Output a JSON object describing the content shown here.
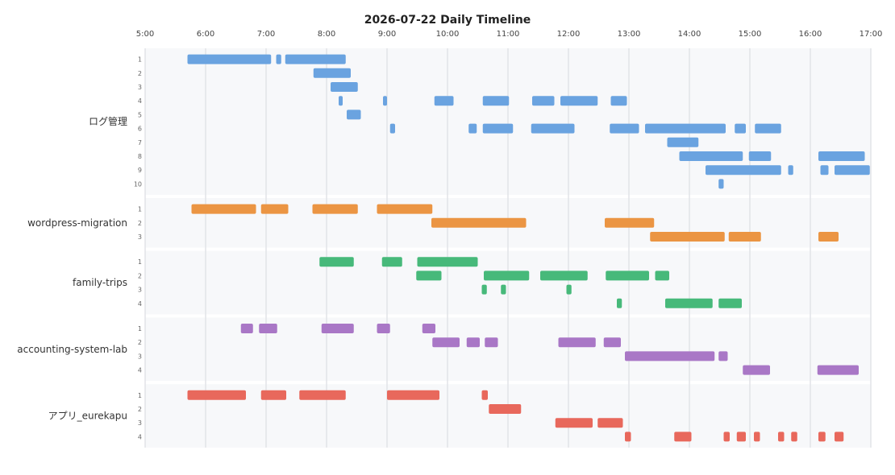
{
  "chart_data": {
    "type": "timeline",
    "title": "2026-07-22 Daily Timeline",
    "x_ticks": [
      "5:00",
      "6:00",
      "7:00",
      "8:00",
      "9:00",
      "10:00",
      "11:00",
      "12:00",
      "13:00",
      "14:00",
      "15:00",
      "16:00",
      "17:00"
    ],
    "x_range": [
      "5:00",
      "17:00"
    ],
    "grid": true,
    "groups": [
      {
        "name": "ログ管理",
        "color": "#6aa3e0",
        "rows": [
          {
            "label": "1",
            "bars": [
              [
                "5:42",
                "7:05"
              ],
              [
                "7:10",
                "7:15"
              ],
              [
                "7:19",
                "8:19"
              ]
            ]
          },
          {
            "label": "2",
            "bars": [
              [
                "7:47",
                "8:24"
              ]
            ]
          },
          {
            "label": "3",
            "bars": [
              [
                "8:04",
                "8:31"
              ]
            ]
          },
          {
            "label": "4",
            "bars": [
              [
                "8:12",
                "8:16"
              ],
              [
                "8:56",
                "9:00"
              ],
              [
                "9:47",
                "10:06"
              ],
              [
                "10:35",
                "11:01"
              ],
              [
                "11:24",
                "11:46"
              ],
              [
                "11:52",
                "12:29"
              ],
              [
                "12:42",
                "12:58"
              ]
            ]
          },
          {
            "label": "5",
            "bars": [
              [
                "8:20",
                "8:34"
              ]
            ]
          },
          {
            "label": "6",
            "bars": [
              [
                "9:03",
                "9:08"
              ],
              [
                "10:21",
                "10:29"
              ],
              [
                "10:35",
                "11:05"
              ],
              [
                "11:23",
                "12:06"
              ],
              [
                "12:41",
                "13:10"
              ],
              [
                "13:16",
                "14:36"
              ],
              [
                "14:45",
                "14:56"
              ],
              [
                "15:05",
                "15:31"
              ]
            ]
          },
          {
            "label": "7",
            "bars": [
              [
                "13:38",
                "14:09"
              ]
            ]
          },
          {
            "label": "8",
            "bars": [
              [
                "13:50",
                "14:53"
              ],
              [
                "14:59",
                "15:21"
              ],
              [
                "16:08",
                "16:54"
              ]
            ]
          },
          {
            "label": "9",
            "bars": [
              [
                "14:16",
                "15:31"
              ],
              [
                "15:38",
                "15:43"
              ],
              [
                "16:10",
                "16:18"
              ],
              [
                "16:24",
                "16:59"
              ]
            ]
          },
          {
            "label": "10",
            "bars": [
              [
                "14:29",
                "14:34"
              ]
            ]
          }
        ]
      },
      {
        "name": "wordpress-migration",
        "color": "#eb9543",
        "rows": [
          {
            "label": "1",
            "bars": [
              [
                "5:46",
                "6:50"
              ],
              [
                "6:55",
                "7:22"
              ],
              [
                "7:46",
                "8:31"
              ],
              [
                "8:50",
                "9:45"
              ]
            ]
          },
          {
            "label": "2",
            "bars": [
              [
                "9:44",
                "11:18"
              ],
              [
                "12:36",
                "13:25"
              ]
            ]
          },
          {
            "label": "3",
            "bars": [
              [
                "13:21",
                "14:35"
              ],
              [
                "14:39",
                "15:11"
              ],
              [
                "16:08",
                "16:28"
              ]
            ]
          }
        ]
      },
      {
        "name": "family-trips",
        "color": "#47b97a",
        "rows": [
          {
            "label": "1",
            "bars": [
              [
                "7:53",
                "8:27"
              ],
              [
                "8:55",
                "9:15"
              ],
              [
                "9:30",
                "10:30"
              ]
            ]
          },
          {
            "label": "2",
            "bars": [
              [
                "9:29",
                "9:54"
              ],
              [
                "10:36",
                "11:21"
              ],
              [
                "11:32",
                "12:19"
              ],
              [
                "12:37",
                "13:20"
              ],
              [
                "13:26",
                "13:40"
              ]
            ]
          },
          {
            "label": "3",
            "bars": [
              [
                "10:34",
                "10:39"
              ],
              [
                "10:53",
                "10:58"
              ],
              [
                "11:58",
                "12:03"
              ]
            ]
          },
          {
            "label": "4",
            "bars": [
              [
                "12:48",
                "12:53"
              ],
              [
                "13:36",
                "14:23"
              ],
              [
                "14:29",
                "14:52"
              ]
            ]
          }
        ]
      },
      {
        "name": "accounting-system-lab",
        "color": "#a977c6",
        "rows": [
          {
            "label": "1",
            "bars": [
              [
                "6:35",
                "6:47"
              ],
              [
                "6:53",
                "7:11"
              ],
              [
                "7:55",
                "8:27"
              ],
              [
                "8:50",
                "9:03"
              ],
              [
                "9:35",
                "9:48"
              ]
            ]
          },
          {
            "label": "2",
            "bars": [
              [
                "9:45",
                "10:12"
              ],
              [
                "10:19",
                "10:32"
              ],
              [
                "10:37",
                "10:50"
              ],
              [
                "11:50",
                "12:27"
              ],
              [
                "12:35",
                "12:52"
              ]
            ]
          },
          {
            "label": "3",
            "bars": [
              [
                "12:56",
                "14:25"
              ],
              [
                "14:29",
                "14:38"
              ]
            ]
          },
          {
            "label": "4",
            "bars": [
              [
                "14:53",
                "15:20"
              ],
              [
                "16:07",
                "16:48"
              ]
            ]
          }
        ]
      },
      {
        "name": "アプリ_eurekapu",
        "color": "#e8685c",
        "rows": [
          {
            "label": "1",
            "bars": [
              [
                "5:42",
                "6:40"
              ],
              [
                "6:55",
                "7:20"
              ],
              [
                "7:33",
                "8:19"
              ],
              [
                "9:00",
                "9:52"
              ],
              [
                "10:34",
                "10:40"
              ]
            ]
          },
          {
            "label": "2",
            "bars": [
              [
                "10:41",
                "11:13"
              ]
            ]
          },
          {
            "label": "3",
            "bars": [
              [
                "11:47",
                "12:24"
              ],
              [
                "12:29",
                "12:54"
              ]
            ]
          },
          {
            "label": "4",
            "bars": [
              [
                "12:56",
                "13:02"
              ],
              [
                "13:45",
                "14:02"
              ],
              [
                "14:34",
                "14:40"
              ],
              [
                "14:47",
                "14:56"
              ],
              [
                "15:04",
                "15:10"
              ],
              [
                "15:28",
                "15:34"
              ],
              [
                "15:41",
                "15:47"
              ],
              [
                "16:08",
                "16:15"
              ],
              [
                "16:24",
                "16:33"
              ]
            ]
          }
        ]
      }
    ]
  }
}
